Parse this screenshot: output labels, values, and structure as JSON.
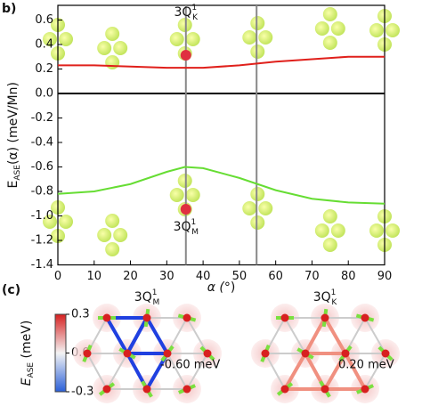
{
  "chart_data": {
    "type": "line",
    "panel_label": "b)",
    "x": [
      0,
      10,
      20,
      30,
      35,
      40,
      50,
      60,
      70,
      80,
      90
    ],
    "series": [
      {
        "color": "#e0201b",
        "values": [
          0.23,
          0.23,
          0.22,
          0.21,
          0.21,
          0.21,
          0.23,
          0.26,
          0.28,
          0.3,
          0.3
        ]
      },
      {
        "color": "#66dd33",
        "values": [
          -0.82,
          -0.8,
          -0.74,
          -0.64,
          -0.6,
          -0.61,
          -0.69,
          -0.79,
          -0.86,
          -0.89,
          -0.9
        ]
      }
    ],
    "xlim": [
      0,
      90
    ],
    "ylim": [
      -1.4,
      0.72
    ],
    "xticks": [
      0,
      10,
      20,
      30,
      40,
      50,
      60,
      70,
      80,
      90
    ],
    "yticks": [
      0.6,
      0.4,
      0.2,
      {
        "value": 0,
        "label": "0.0"
      },
      -0.2,
      -0.4,
      -0.6,
      -0.8,
      {
        "value": -1,
        "label": "-1.0"
      },
      -1.2,
      -1.4
    ],
    "x_label": {
      "main": "α (",
      "deg": "°",
      ")": ")"
    },
    "y_label": {
      "e": "E",
      "sub": "ASE",
      "rest": "(α) (meV/Mn)"
    },
    "vlines": [
      35.26,
      54.74
    ],
    "annotations": [
      {
        "main": "3Q",
        "sup": "1",
        "sub": "K"
      },
      {
        "main": "3Q",
        "sup": "1",
        "sub": "M"
      }
    ]
  },
  "panel_c": {
    "label": "(c)",
    "colorbar": {
      "label_main": "E",
      "label_sub": "ASE",
      "label_unit": " (meV)",
      "ticks": [
        0.3,
        {
          "value": 0,
          "label": "0.0"
        },
        -0.3
      ],
      "lim": [
        -0.3,
        0.3
      ]
    },
    "structures": [
      {
        "main": "3Q",
        "sup": "1",
        "sub": "M",
        "energy": "-0.60 meV"
      },
      {
        "main": "3Q",
        "sup": "1",
        "sub": "K",
        "energy": "0.20 meV"
      }
    ]
  }
}
